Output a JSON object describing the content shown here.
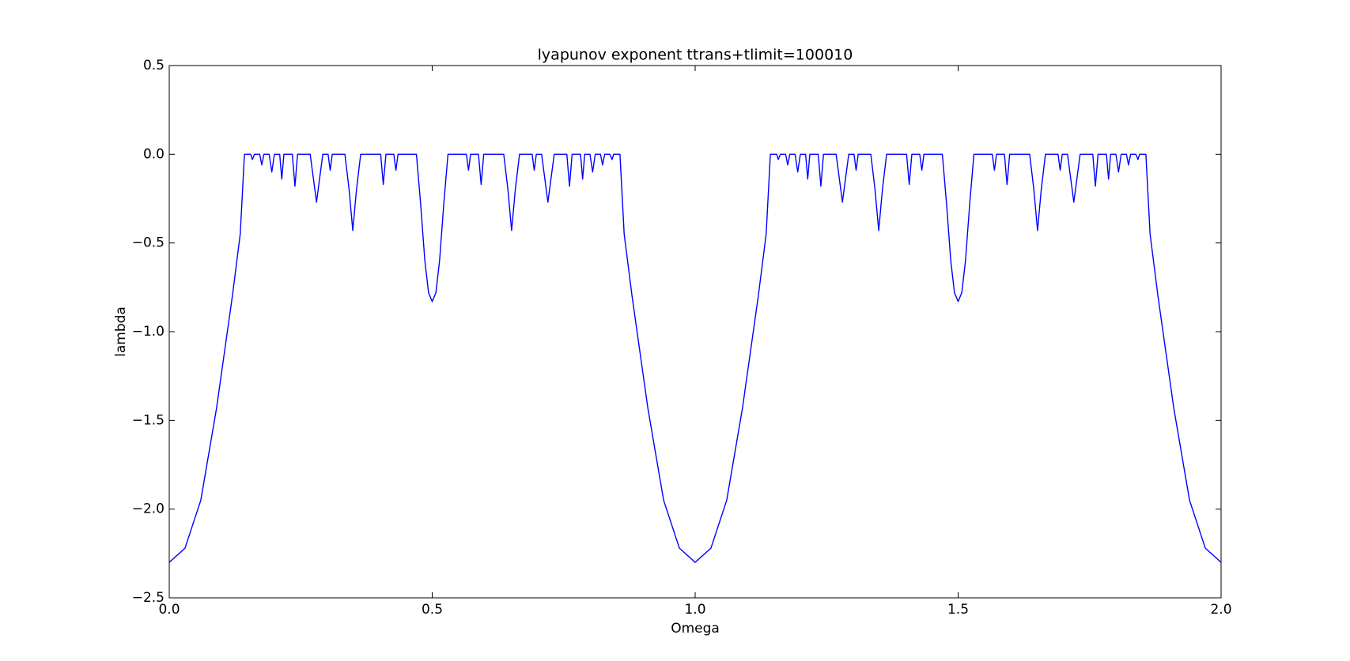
{
  "chart_data": {
    "type": "line",
    "title": "lyapunov exponent ttrans+tlimit=100010",
    "xlabel": "Omega",
    "ylabel": "lambda",
    "color": "#0000ff",
    "x": [
      0,
      0.03,
      0.06,
      0.09,
      0.12,
      0.135,
      0.143,
      0.155,
      0.158,
      0.162,
      0.172,
      0.176,
      0.18,
      0.19,
      0.195,
      0.2,
      0.21,
      0.214,
      0.218,
      0.234,
      0.239,
      0.244,
      0.268,
      0.28,
      0.292,
      0.302,
      0.306,
      0.31,
      0.334,
      0.342,
      0.349,
      0.356,
      0.364,
      0.402,
      0.407,
      0.412,
      0.427,
      0.431,
      0.435,
      0.47,
      0.478,
      0.486,
      0.493,
      0.5,
      0.507,
      0.514,
      0.522,
      0.53,
      0.565,
      0.569,
      0.573,
      0.588,
      0.593,
      0.598,
      0.636,
      0.644,
      0.651,
      0.658,
      0.666,
      0.69,
      0.694,
      0.698,
      0.708,
      0.72,
      0.732,
      0.756,
      0.761,
      0.766,
      0.782,
      0.786,
      0.79,
      0.8,
      0.805,
      0.81,
      0.82,
      0.824,
      0.828,
      0.838,
      0.842,
      0.845,
      0.857,
      0.865,
      0.88,
      0.91,
      0.94,
      0.97,
      1.0,
      1.03,
      1.06,
      1.09,
      1.12,
      1.135,
      1.143,
      1.155,
      1.158,
      1.162,
      1.172,
      1.176,
      1.18,
      1.19,
      1.195,
      1.2,
      1.21,
      1.214,
      1.218,
      1.234,
      1.239,
      1.244,
      1.268,
      1.28,
      1.292,
      1.302,
      1.306,
      1.31,
      1.334,
      1.342,
      1.349,
      1.356,
      1.364,
      1.402,
      1.407,
      1.412,
      1.427,
      1.431,
      1.435,
      1.47,
      1.478,
      1.486,
      1.493,
      1.5,
      1.507,
      1.514,
      1.522,
      1.53,
      1.565,
      1.569,
      1.573,
      1.588,
      1.593,
      1.598,
      1.636,
      1.644,
      1.651,
      1.658,
      1.666,
      1.69,
      1.694,
      1.698,
      1.708,
      1.72,
      1.732,
      1.756,
      1.761,
      1.766,
      1.782,
      1.786,
      1.79,
      1.8,
      1.805,
      1.81,
      1.82,
      1.824,
      1.828,
      1.838,
      1.842,
      1.845,
      1.857,
      1.865,
      1.88,
      1.91,
      1.94,
      1.97,
      2.0
    ],
    "values": [
      -2.3,
      -2.22,
      -1.95,
      -1.43,
      -0.8,
      -0.45,
      0,
      0,
      -0.03,
      0,
      0,
      -0.06,
      0,
      0,
      -0.1,
      0,
      0,
      -0.14,
      0,
      0,
      -0.18,
      0,
      0,
      -0.27,
      0,
      0,
      -0.09,
      0,
      0,
      -0.2,
      -0.43,
      -0.2,
      0,
      0,
      -0.17,
      0,
      0,
      -0.09,
      0,
      0,
      -0.28,
      -0.6,
      -0.78,
      -0.83,
      -0.78,
      -0.6,
      -0.28,
      0,
      0,
      -0.09,
      0,
      0,
      -0.17,
      0,
      0,
      -0.2,
      -0.43,
      -0.2,
      0,
      0,
      -0.09,
      0,
      0,
      -0.27,
      0,
      0,
      -0.18,
      0,
      0,
      -0.14,
      0,
      0,
      -0.1,
      0,
      0,
      -0.06,
      0,
      0,
      -0.03,
      0,
      0,
      -0.45,
      -0.8,
      -1.43,
      -1.95,
      -2.22,
      -2.3,
      -2.22,
      -1.95,
      -1.43,
      -0.8,
      -0.45,
      0,
      0,
      -0.03,
      0,
      0,
      -0.06,
      0,
      0,
      -0.1,
      0,
      0,
      -0.14,
      0,
      0,
      -0.18,
      0,
      0,
      -0.27,
      0,
      0,
      -0.09,
      0,
      0,
      -0.2,
      -0.43,
      -0.2,
      0,
      0,
      -0.17,
      0,
      0,
      -0.09,
      0,
      0,
      -0.28,
      -0.6,
      -0.78,
      -0.83,
      -0.78,
      -0.6,
      -0.28,
      0,
      0,
      -0.09,
      0,
      0,
      -0.17,
      0,
      0,
      -0.2,
      -0.43,
      -0.2,
      0,
      0,
      -0.09,
      0,
      0,
      -0.27,
      0,
      0,
      -0.18,
      0,
      0,
      -0.14,
      0,
      0,
      -0.1,
      0,
      0,
      -0.06,
      0,
      0,
      -0.03,
      0,
      0,
      -0.45,
      -0.8,
      -1.43,
      -1.95,
      -2.22,
      -2.3
    ],
    "xlim": [
      0,
      2
    ],
    "ylim": [
      -2.5,
      0.5
    ],
    "xticks": [
      {
        "value": 0,
        "label": "0.0"
      },
      {
        "value": 0.5,
        "label": "0.5"
      },
      {
        "value": 1,
        "label": "1.0"
      },
      {
        "value": 1.5,
        "label": "1.5"
      },
      {
        "value": 2,
        "label": "2.0"
      }
    ],
    "yticks": [
      {
        "value": -2.5,
        "label": "−2.5"
      },
      {
        "value": -2,
        "label": "−2.0"
      },
      {
        "value": -1.5,
        "label": "−1.5"
      },
      {
        "value": -1,
        "label": "−1.0"
      },
      {
        "value": -0.5,
        "label": "−0.5"
      },
      {
        "value": 0,
        "label": "0.0"
      },
      {
        "value": 0.5,
        "label": "0.5"
      }
    ],
    "grid": false
  }
}
